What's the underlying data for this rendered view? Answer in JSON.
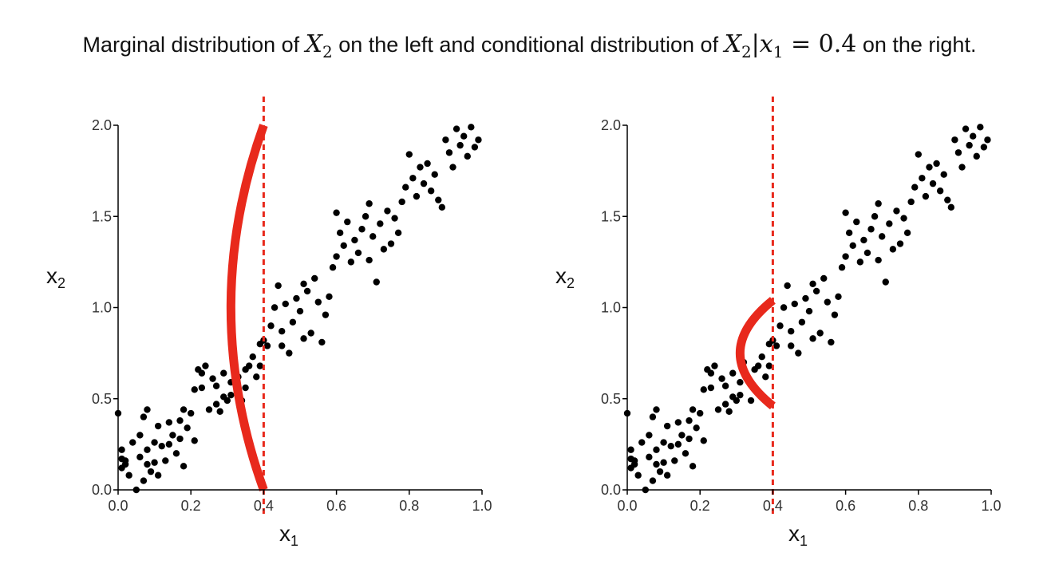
{
  "caption": {
    "part1": "Marginal distribution of ",
    "m1": "X",
    "m1_sub": "2",
    "part2": " on the left and conditional distribution of ",
    "m2": "X",
    "m2_sub": "2",
    "m2_rest": "|x",
    "m2_sub2": "1",
    "m2_eq": " = 0.4",
    "part3": " on the right."
  },
  "colors": {
    "points": "#000000",
    "curve": "#e8291c",
    "dashed_line": "#e8291c",
    "axis": "#000000"
  },
  "chart_data": [
    {
      "type": "scatter",
      "xlabel": "x",
      "xlabel_sub": "1",
      "ylabel": "x",
      "ylabel_sub": "2",
      "xlim": [
        0,
        1
      ],
      "ylim": [
        0,
        2
      ],
      "xticks": [
        "0.0",
        "0.2",
        "0.4",
        "0.6",
        "0.8",
        "1.0"
      ],
      "yticks": [
        "0.0",
        "0.5",
        "1.0",
        "1.5",
        "2.0"
      ],
      "vline_x": 0.4,
      "curve": {
        "kind": "marginal density of x2",
        "y_range": [
          0.0,
          2.0
        ],
        "x_left_extreme": 0.31,
        "x_base": 0.4
      },
      "points": [
        [
          0.0,
          0.42
        ],
        [
          0.01,
          0.12
        ],
        [
          0.01,
          0.17
        ],
        [
          0.01,
          0.22
        ],
        [
          0.02,
          0.14
        ],
        [
          0.02,
          0.16
        ],
        [
          0.03,
          0.08
        ],
        [
          0.04,
          0.26
        ],
        [
          0.05,
          0.0
        ],
        [
          0.06,
          0.18
        ],
        [
          0.06,
          0.3
        ],
        [
          0.07,
          0.4
        ],
        [
          0.07,
          0.05
        ],
        [
          0.08,
          0.22
        ],
        [
          0.08,
          0.14
        ],
        [
          0.08,
          0.44
        ],
        [
          0.09,
          0.1
        ],
        [
          0.1,
          0.15
        ],
        [
          0.1,
          0.26
        ],
        [
          0.11,
          0.35
        ],
        [
          0.11,
          0.08
        ],
        [
          0.12,
          0.24
        ],
        [
          0.13,
          0.16
        ],
        [
          0.14,
          0.37
        ],
        [
          0.14,
          0.25
        ],
        [
          0.15,
          0.3
        ],
        [
          0.16,
          0.2
        ],
        [
          0.17,
          0.28
        ],
        [
          0.17,
          0.38
        ],
        [
          0.18,
          0.13
        ],
        [
          0.18,
          0.44
        ],
        [
          0.19,
          0.34
        ],
        [
          0.2,
          0.42
        ],
        [
          0.21,
          0.27
        ],
        [
          0.21,
          0.55
        ],
        [
          0.22,
          0.66
        ],
        [
          0.23,
          0.56
        ],
        [
          0.23,
          0.64
        ],
        [
          0.24,
          0.68
        ],
        [
          0.25,
          0.44
        ],
        [
          0.26,
          0.61
        ],
        [
          0.27,
          0.47
        ],
        [
          0.27,
          0.57
        ],
        [
          0.28,
          0.43
        ],
        [
          0.29,
          0.51
        ],
        [
          0.29,
          0.64
        ],
        [
          0.3,
          0.49
        ],
        [
          0.31,
          0.52
        ],
        [
          0.31,
          0.59
        ],
        [
          0.32,
          0.7
        ],
        [
          0.33,
          0.62
        ],
        [
          0.34,
          0.49
        ],
        [
          0.35,
          0.66
        ],
        [
          0.35,
          0.56
        ],
        [
          0.36,
          0.68
        ],
        [
          0.37,
          0.73
        ],
        [
          0.38,
          0.62
        ],
        [
          0.39,
          0.8
        ],
        [
          0.39,
          0.68
        ],
        [
          0.4,
          0.82
        ],
        [
          0.41,
          0.79
        ],
        [
          0.42,
          0.9
        ],
        [
          0.43,
          1.0
        ],
        [
          0.44,
          1.12
        ],
        [
          0.45,
          0.87
        ],
        [
          0.45,
          0.79
        ],
        [
          0.46,
          1.02
        ],
        [
          0.47,
          0.75
        ],
        [
          0.48,
          0.92
        ],
        [
          0.49,
          1.05
        ],
        [
          0.5,
          0.98
        ],
        [
          0.51,
          1.13
        ],
        [
          0.51,
          0.83
        ],
        [
          0.52,
          1.09
        ],
        [
          0.53,
          0.86
        ],
        [
          0.54,
          1.16
        ],
        [
          0.55,
          1.03
        ],
        [
          0.56,
          0.81
        ],
        [
          0.57,
          0.96
        ],
        [
          0.58,
          1.06
        ],
        [
          0.59,
          1.22
        ],
        [
          0.6,
          1.28
        ],
        [
          0.6,
          1.52
        ],
        [
          0.61,
          1.41
        ],
        [
          0.62,
          1.34
        ],
        [
          0.63,
          1.47
        ],
        [
          0.64,
          1.25
        ],
        [
          0.65,
          1.37
        ],
        [
          0.66,
          1.3
        ],
        [
          0.67,
          1.43
        ],
        [
          0.68,
          1.5
        ],
        [
          0.69,
          1.26
        ],
        [
          0.69,
          1.57
        ],
        [
          0.7,
          1.39
        ],
        [
          0.71,
          1.14
        ],
        [
          0.72,
          1.46
        ],
        [
          0.73,
          1.32
        ],
        [
          0.74,
          1.53
        ],
        [
          0.75,
          1.35
        ],
        [
          0.76,
          1.49
        ],
        [
          0.77,
          1.41
        ],
        [
          0.78,
          1.58
        ],
        [
          0.79,
          1.66
        ],
        [
          0.8,
          1.84
        ],
        [
          0.81,
          1.71
        ],
        [
          0.82,
          1.61
        ],
        [
          0.83,
          1.77
        ],
        [
          0.84,
          1.68
        ],
        [
          0.85,
          1.79
        ],
        [
          0.86,
          1.64
        ],
        [
          0.87,
          1.73
        ],
        [
          0.88,
          1.59
        ],
        [
          0.89,
          1.55
        ],
        [
          0.9,
          1.92
        ],
        [
          0.91,
          1.85
        ],
        [
          0.92,
          1.77
        ],
        [
          0.93,
          1.98
        ],
        [
          0.94,
          1.89
        ],
        [
          0.95,
          1.94
        ],
        [
          0.96,
          1.83
        ],
        [
          0.97,
          1.99
        ],
        [
          0.98,
          1.88
        ],
        [
          0.99,
          1.92
        ]
      ]
    },
    {
      "type": "scatter",
      "xlabel": "x",
      "xlabel_sub": "1",
      "ylabel": "x",
      "ylabel_sub": "2",
      "xlim": [
        0,
        1
      ],
      "ylim": [
        0,
        2
      ],
      "xticks": [
        "0.0",
        "0.2",
        "0.4",
        "0.6",
        "0.8",
        "1.0"
      ],
      "yticks": [
        "0.0",
        "0.5",
        "1.0",
        "1.5",
        "2.0"
      ],
      "vline_x": 0.4,
      "curve": {
        "kind": "conditional density of x2 given x1 = 0.4",
        "y_range": [
          0.46,
          1.04
        ],
        "x_left_extreme": 0.31,
        "x_base": 0.4
      },
      "points": [
        [
          0.0,
          0.42
        ],
        [
          0.01,
          0.12
        ],
        [
          0.01,
          0.17
        ],
        [
          0.01,
          0.22
        ],
        [
          0.02,
          0.14
        ],
        [
          0.02,
          0.16
        ],
        [
          0.03,
          0.08
        ],
        [
          0.04,
          0.26
        ],
        [
          0.05,
          0.0
        ],
        [
          0.06,
          0.18
        ],
        [
          0.06,
          0.3
        ],
        [
          0.07,
          0.4
        ],
        [
          0.07,
          0.05
        ],
        [
          0.08,
          0.22
        ],
        [
          0.08,
          0.14
        ],
        [
          0.08,
          0.44
        ],
        [
          0.09,
          0.1
        ],
        [
          0.1,
          0.15
        ],
        [
          0.1,
          0.26
        ],
        [
          0.11,
          0.35
        ],
        [
          0.11,
          0.08
        ],
        [
          0.12,
          0.24
        ],
        [
          0.13,
          0.16
        ],
        [
          0.14,
          0.37
        ],
        [
          0.14,
          0.25
        ],
        [
          0.15,
          0.3
        ],
        [
          0.16,
          0.2
        ],
        [
          0.17,
          0.28
        ],
        [
          0.17,
          0.38
        ],
        [
          0.18,
          0.13
        ],
        [
          0.18,
          0.44
        ],
        [
          0.19,
          0.34
        ],
        [
          0.2,
          0.42
        ],
        [
          0.21,
          0.27
        ],
        [
          0.21,
          0.55
        ],
        [
          0.22,
          0.66
        ],
        [
          0.23,
          0.56
        ],
        [
          0.23,
          0.64
        ],
        [
          0.24,
          0.68
        ],
        [
          0.25,
          0.44
        ],
        [
          0.26,
          0.61
        ],
        [
          0.27,
          0.47
        ],
        [
          0.27,
          0.57
        ],
        [
          0.28,
          0.43
        ],
        [
          0.29,
          0.51
        ],
        [
          0.29,
          0.64
        ],
        [
          0.3,
          0.49
        ],
        [
          0.31,
          0.52
        ],
        [
          0.31,
          0.59
        ],
        [
          0.32,
          0.7
        ],
        [
          0.33,
          0.62
        ],
        [
          0.34,
          0.49
        ],
        [
          0.35,
          0.66
        ],
        [
          0.35,
          0.56
        ],
        [
          0.36,
          0.68
        ],
        [
          0.37,
          0.73
        ],
        [
          0.38,
          0.62
        ],
        [
          0.39,
          0.8
        ],
        [
          0.39,
          0.68
        ],
        [
          0.4,
          0.82
        ],
        [
          0.41,
          0.79
        ],
        [
          0.42,
          0.9
        ],
        [
          0.43,
          1.0
        ],
        [
          0.44,
          1.12
        ],
        [
          0.45,
          0.87
        ],
        [
          0.45,
          0.79
        ],
        [
          0.46,
          1.02
        ],
        [
          0.47,
          0.75
        ],
        [
          0.48,
          0.92
        ],
        [
          0.49,
          1.05
        ],
        [
          0.5,
          0.98
        ],
        [
          0.51,
          1.13
        ],
        [
          0.51,
          0.83
        ],
        [
          0.52,
          1.09
        ],
        [
          0.53,
          0.86
        ],
        [
          0.54,
          1.16
        ],
        [
          0.55,
          1.03
        ],
        [
          0.56,
          0.81
        ],
        [
          0.57,
          0.96
        ],
        [
          0.58,
          1.06
        ],
        [
          0.59,
          1.22
        ],
        [
          0.6,
          1.28
        ],
        [
          0.6,
          1.52
        ],
        [
          0.61,
          1.41
        ],
        [
          0.62,
          1.34
        ],
        [
          0.63,
          1.47
        ],
        [
          0.64,
          1.25
        ],
        [
          0.65,
          1.37
        ],
        [
          0.66,
          1.3
        ],
        [
          0.67,
          1.43
        ],
        [
          0.68,
          1.5
        ],
        [
          0.69,
          1.26
        ],
        [
          0.69,
          1.57
        ],
        [
          0.7,
          1.39
        ],
        [
          0.71,
          1.14
        ],
        [
          0.72,
          1.46
        ],
        [
          0.73,
          1.32
        ],
        [
          0.74,
          1.53
        ],
        [
          0.75,
          1.35
        ],
        [
          0.76,
          1.49
        ],
        [
          0.77,
          1.41
        ],
        [
          0.78,
          1.58
        ],
        [
          0.79,
          1.66
        ],
        [
          0.8,
          1.84
        ],
        [
          0.81,
          1.71
        ],
        [
          0.82,
          1.61
        ],
        [
          0.83,
          1.77
        ],
        [
          0.84,
          1.68
        ],
        [
          0.85,
          1.79
        ],
        [
          0.86,
          1.64
        ],
        [
          0.87,
          1.73
        ],
        [
          0.88,
          1.59
        ],
        [
          0.89,
          1.55
        ],
        [
          0.9,
          1.92
        ],
        [
          0.91,
          1.85
        ],
        [
          0.92,
          1.77
        ],
        [
          0.93,
          1.98
        ],
        [
          0.94,
          1.89
        ],
        [
          0.95,
          1.94
        ],
        [
          0.96,
          1.83
        ],
        [
          0.97,
          1.99
        ],
        [
          0.98,
          1.88
        ],
        [
          0.99,
          1.92
        ]
      ]
    }
  ]
}
